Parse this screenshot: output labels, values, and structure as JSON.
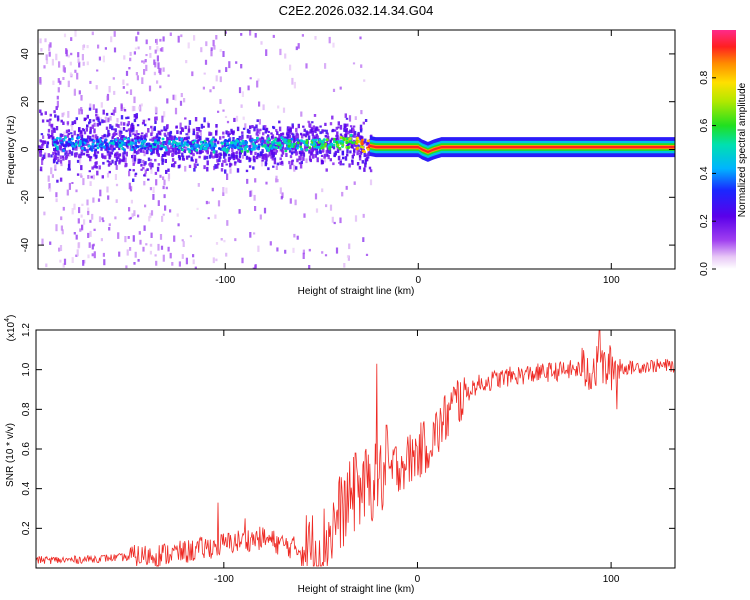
{
  "title": "C2E2.2026.032.14.34.G04",
  "colors": {
    "snr_line": "#ee2a24",
    "ridge": "#ff2020",
    "background": "#ffffff",
    "axis": "#000000",
    "colormap": [
      "#ffffff",
      "#e6c8f5",
      "#9a3cf0",
      "#5a00ea",
      "#1a1aff",
      "#00b4ff",
      "#00e0c0",
      "#30e030",
      "#a8e800",
      "#ffe000",
      "#ff9000",
      "#ff2020",
      "#ff2a8a"
    ]
  },
  "chart_data": [
    {
      "type": "heatmap",
      "name": "spectrogram",
      "xlabel": "Height of straight line (km)",
      "ylabel": "Frequency (Hz)",
      "xlim": [
        -197,
        133
      ],
      "ylim": [
        -50,
        50
      ],
      "x_ticks": [
        -100,
        0,
        100
      ],
      "x_tick_labels": [
        "-100",
        "0",
        "100"
      ],
      "y_ticks": [
        -40,
        -20,
        0,
        20,
        40
      ],
      "y_tick_labels": [
        "-40",
        "-20",
        "0",
        "20",
        "40"
      ],
      "ridge": {
        "x": [
          -197,
          -140,
          -100,
          -60,
          -45,
          -35,
          -28,
          -22,
          -15,
          0,
          2,
          5,
          8,
          12,
          20,
          60,
          100,
          133
        ],
        "freq": [
          3,
          3,
          2,
          3,
          3,
          4,
          2,
          1,
          1,
          1,
          0,
          -1,
          0,
          1,
          1,
          1,
          1,
          1
        ],
        "amplitude": [
          0.3,
          0.35,
          0.38,
          0.45,
          0.5,
          0.6,
          0.8,
          0.9,
          0.92,
          0.9,
          0.7,
          0.6,
          0.7,
          0.9,
          0.92,
          0.92,
          0.92,
          0.92
        ]
      },
      "colorbar": {
        "label": "Normalized spectral amplitude",
        "range": [
          0,
          1
        ],
        "ticks": [
          0.0,
          0.2,
          0.4,
          0.6,
          0.8
        ],
        "tick_labels": [
          "0.0",
          "0.2",
          "0.4",
          "0.6",
          "0.8"
        ]
      }
    },
    {
      "type": "line",
      "name": "snr",
      "xlabel": "Height of straight line (km)",
      "ylabel": "SNR (10 * v/v)",
      "y_scale_label": "(x10",
      "y_scale_exponent": "4",
      "xlim": [
        -197,
        133
      ],
      "ylim": [
        0,
        1.2
      ],
      "x_ticks": [
        -100,
        0,
        100
      ],
      "x_tick_labels": [
        "-100",
        "0",
        "100"
      ],
      "y_ticks": [
        0.2,
        0.4,
        0.6,
        0.8,
        1.0,
        1.2
      ],
      "y_tick_labels": [
        "0.2",
        "0.4",
        "0.6",
        "0.8",
        "1.0",
        "1.2"
      ],
      "series": [
        {
          "name": "SNR",
          "x": [
            -197,
            -180,
            -160,
            -140,
            -120,
            -100,
            -90,
            -80,
            -70,
            -60,
            -50,
            -45,
            -40,
            -35,
            -30,
            -25,
            -20,
            -15,
            -10,
            -5,
            0,
            5,
            10,
            15,
            20,
            25,
            30,
            40,
            50,
            60,
            70,
            80,
            90,
            100,
            110,
            120,
            133
          ],
          "values": [
            0.04,
            0.04,
            0.05,
            0.06,
            0.08,
            0.12,
            0.14,
            0.15,
            0.12,
            0.09,
            0.1,
            0.18,
            0.28,
            0.34,
            0.4,
            0.42,
            0.44,
            0.48,
            0.52,
            0.54,
            0.58,
            0.62,
            0.68,
            0.76,
            0.84,
            0.88,
            0.92,
            0.95,
            0.97,
            0.98,
            0.99,
            1.0,
            1.0,
            1.01,
            1.01,
            1.02,
            1.02
          ]
        }
      ],
      "spikes": [
        {
          "x": -103,
          "value": 0.33
        },
        {
          "x": -89,
          "value": 0.25
        },
        {
          "x": -32,
          "value": 0.58
        },
        {
          "x": -21,
          "value": 1.03
        },
        {
          "x": -16,
          "value": 0.72
        },
        {
          "x": 94,
          "value": 1.2
        },
        {
          "x": 103,
          "value": 0.8
        }
      ]
    }
  ]
}
